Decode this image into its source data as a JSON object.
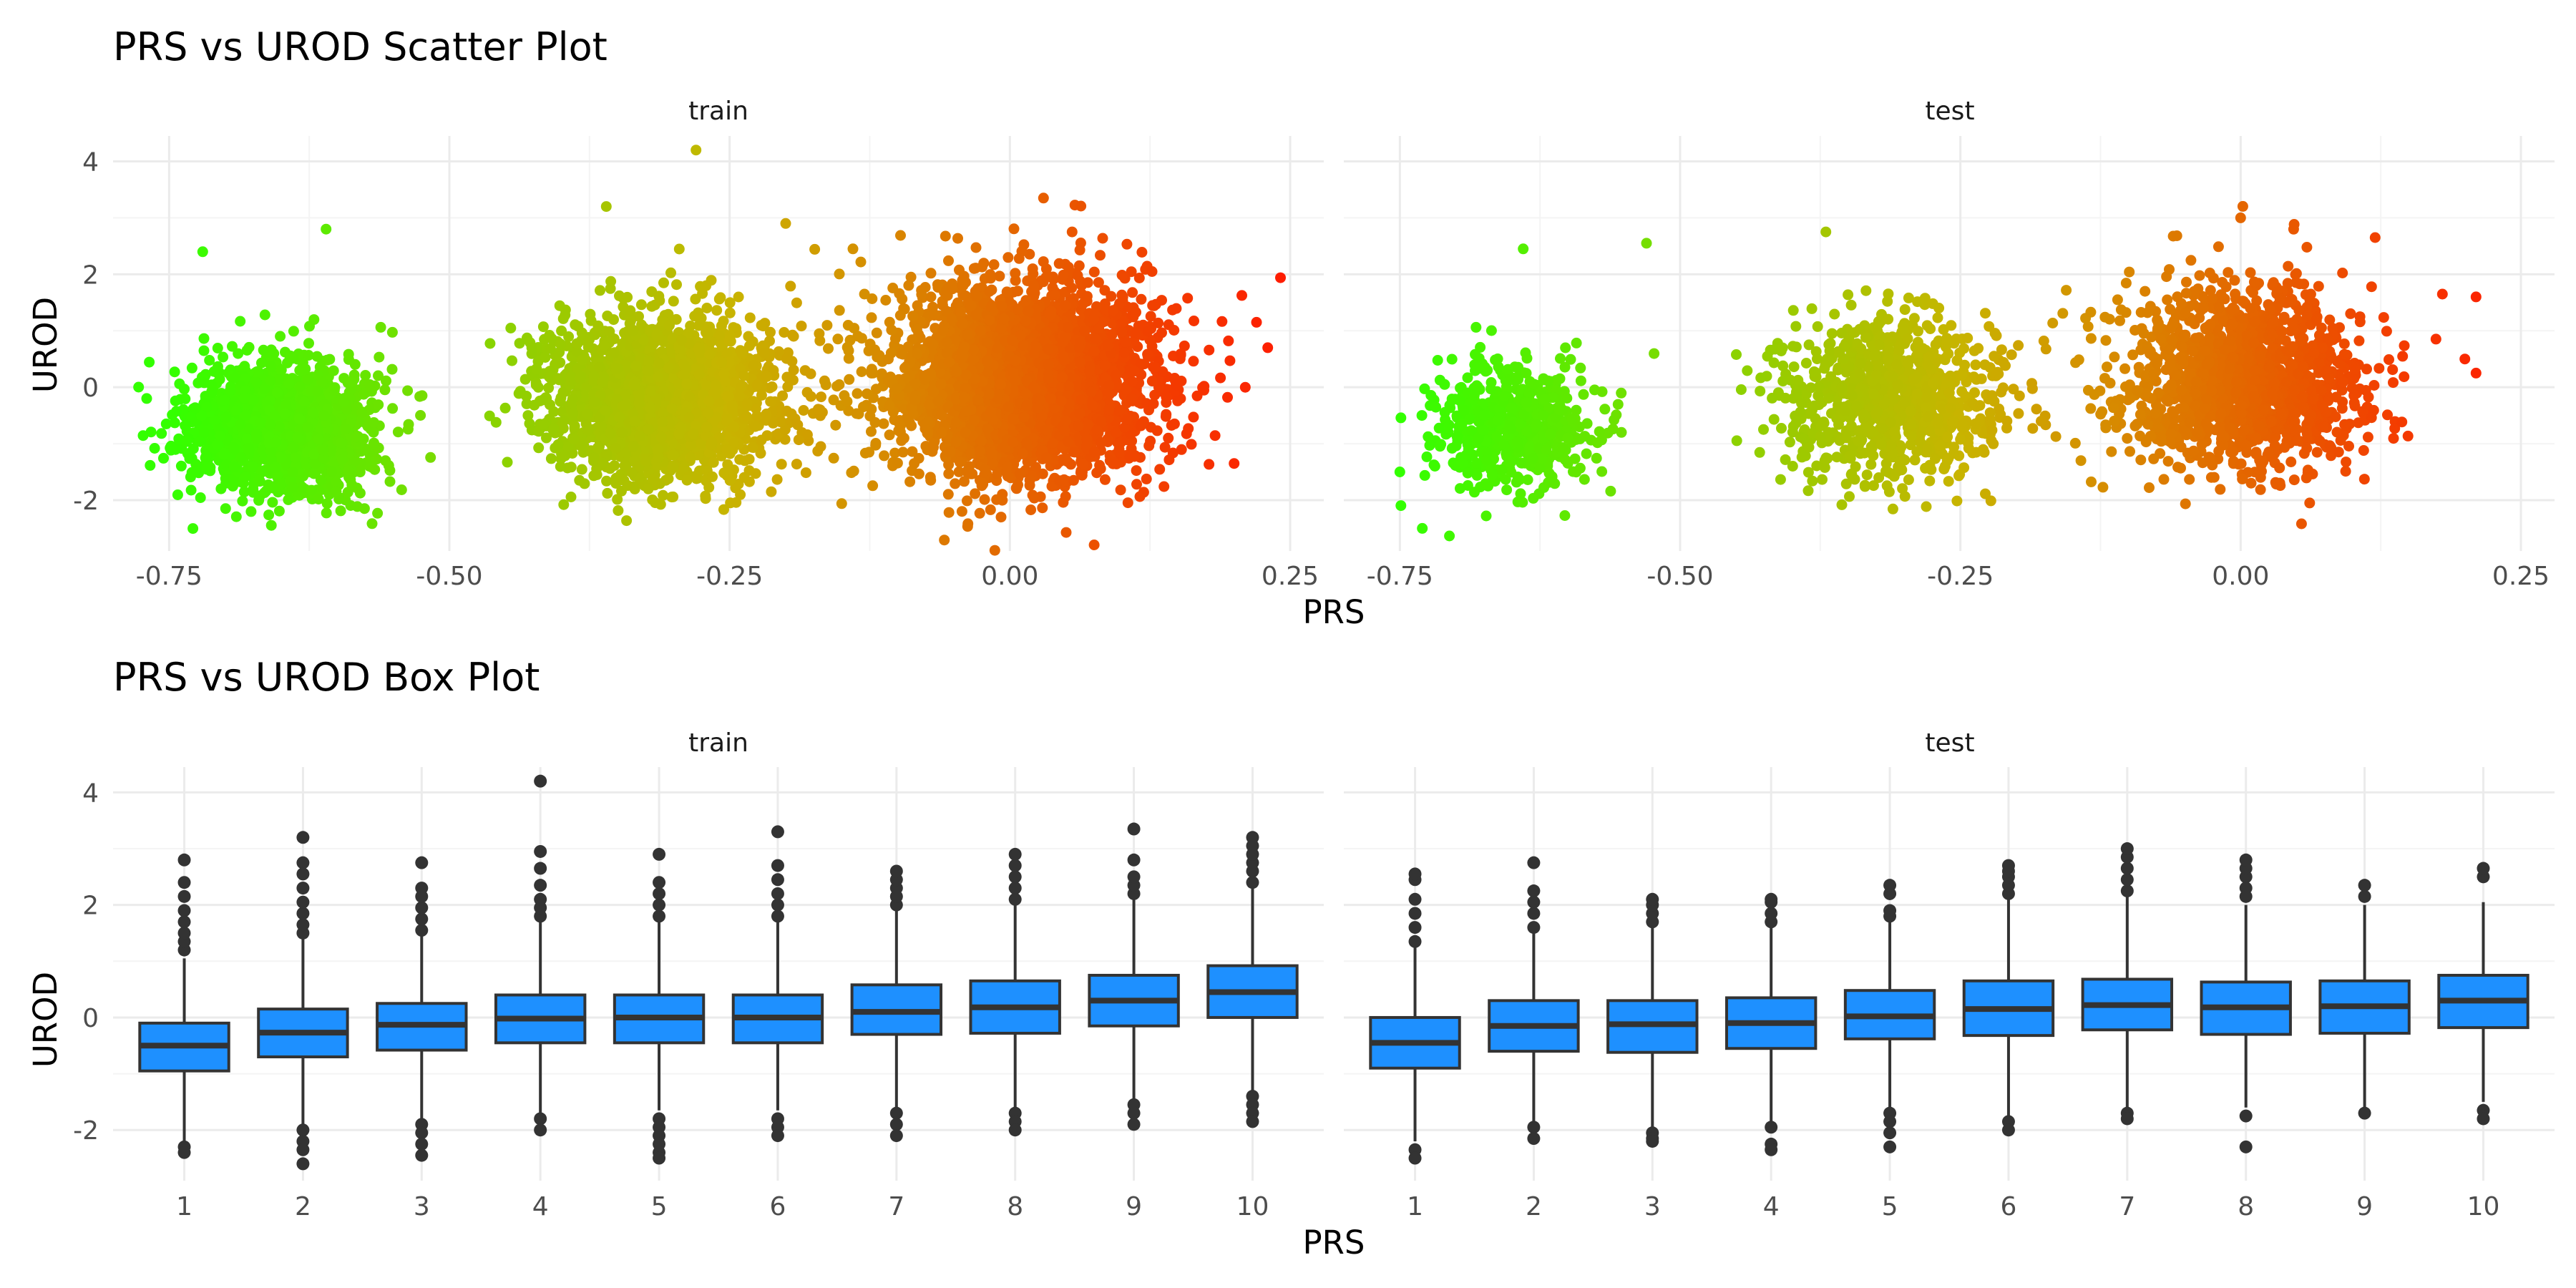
{
  "chart_data": [
    {
      "type": "scatter",
      "title": "PRS vs UROD Scatter Plot",
      "xlabel": "PRS",
      "ylabel": "UROD",
      "xlim": [
        -0.8,
        0.28
      ],
      "ylim": [
        -2.9,
        4.45
      ],
      "x_ticks": [
        -0.75,
        -0.5,
        -0.25,
        0.0,
        0.25
      ],
      "x_tick_labels": [
        "-0.75",
        "-0.50",
        "-0.25",
        "0.00",
        "0.25"
      ],
      "y_ticks": [
        -2,
        0,
        2,
        4
      ],
      "y_tick_labels": [
        "-2",
        "0",
        "2",
        "4"
      ],
      "grid": true,
      "color_scale": {
        "low": "#33ff00",
        "mid": "#c8b400",
        "high": "#ff1a00",
        "range": [
          -0.75,
          0.25
        ]
      },
      "panels": [
        {
          "name": "train",
          "clusters": [
            {
              "x_center": -0.65,
              "x_sd": 0.04,
              "y_center": -0.7,
              "y_sd": 0.6,
              "n": 1600
            },
            {
              "x_center": -0.31,
              "x_sd": 0.05,
              "y_center": -0.2,
              "y_sd": 0.7,
              "n": 2200
            },
            {
              "x_center": 0.01,
              "x_sd": 0.06,
              "y_center": 0.15,
              "y_sd": 0.85,
              "n": 3200
            }
          ],
          "outliers": [
            [
              -0.77,
              -0.2
            ],
            [
              -0.72,
              2.4
            ],
            [
              -0.61,
              2.8
            ],
            [
              -0.28,
              4.2
            ],
            [
              -0.36,
              3.2
            ],
            [
              0.03,
              3.35
            ],
            [
              0.22,
              1.15
            ],
            [
              0.23,
              0.7
            ],
            [
              0.21,
              0.0
            ],
            [
              0.2,
              -1.35
            ],
            [
              -0.2,
              2.9
            ],
            [
              -0.14,
              2.45
            ]
          ]
        },
        {
          "name": "test",
          "clusters": [
            {
              "x_center": -0.65,
              "x_sd": 0.035,
              "y_center": -0.7,
              "y_sd": 0.55,
              "n": 550
            },
            {
              "x_center": -0.31,
              "x_sd": 0.05,
              "y_center": -0.2,
              "y_sd": 0.7,
              "n": 900
            },
            {
              "x_center": 0.0,
              "x_sd": 0.055,
              "y_center": 0.15,
              "y_sd": 0.8,
              "n": 1400
            }
          ],
          "outliers": [
            [
              -0.75,
              -1.5
            ],
            [
              -0.73,
              -2.5
            ],
            [
              -0.64,
              2.45
            ],
            [
              -0.53,
              2.55
            ],
            [
              -0.37,
              2.75
            ],
            [
              0.0,
              3.0
            ],
            [
              0.18,
              1.65
            ],
            [
              0.21,
              1.6
            ],
            [
              0.2,
              0.5
            ],
            [
              0.21,
              0.25
            ],
            [
              0.12,
              2.65
            ]
          ]
        }
      ]
    },
    {
      "type": "box",
      "title": "PRS vs UROD Box Plot",
      "xlabel": "PRS",
      "ylabel": "UROD",
      "categories": [
        "1",
        "2",
        "3",
        "4",
        "5",
        "6",
        "7",
        "8",
        "9",
        "10"
      ],
      "ylim": [
        -2.9,
        4.45
      ],
      "y_ticks": [
        -2,
        0,
        2,
        4
      ],
      "y_tick_labels": [
        "-2",
        "0",
        "2",
        "4"
      ],
      "grid": true,
      "box_fill": "#1e90ff",
      "box_line": "#333333",
      "panels": [
        {
          "name": "train",
          "boxes": [
            {
              "q1": -0.95,
              "median": -0.5,
              "q3": -0.1,
              "lo": -2.2,
              "hi": 1.05,
              "out_lo": [
                -2.3,
                -2.4
              ],
              "out_hi": [
                1.2,
                1.35,
                1.5,
                1.7,
                1.9,
                2.15,
                2.4,
                2.8
              ]
            },
            {
              "q1": -0.7,
              "median": -0.27,
              "q3": 0.15,
              "lo": -1.95,
              "hi": 1.4,
              "out_lo": [
                -2.0,
                -2.2,
                -2.35,
                -2.6
              ],
              "out_hi": [
                1.5,
                1.65,
                1.85,
                2.05,
                2.3,
                2.55,
                2.75,
                3.2
              ]
            },
            {
              "q1": -0.58,
              "median": -0.13,
              "q3": 0.25,
              "lo": -1.8,
              "hi": 1.45,
              "out_lo": [
                -1.9,
                -2.05,
                -2.25,
                -2.45
              ],
              "out_hi": [
                1.55,
                1.75,
                1.95,
                2.15,
                2.3,
                2.75
              ]
            },
            {
              "q1": -0.45,
              "median": -0.02,
              "q3": 0.4,
              "lo": -1.7,
              "hi": 1.7,
              "out_lo": [
                -1.8,
                -2.0
              ],
              "out_hi": [
                1.8,
                1.95,
                2.1,
                2.35,
                2.65,
                2.95,
                4.2
              ]
            },
            {
              "q1": -0.45,
              "median": 0.0,
              "q3": 0.4,
              "lo": -1.65,
              "hi": 1.7,
              "out_lo": [
                -1.8,
                -1.95,
                -2.1,
                -2.25,
                -2.4,
                -2.5
              ],
              "out_hi": [
                1.8,
                2.0,
                2.2,
                2.4,
                2.9
              ]
            },
            {
              "q1": -0.45,
              "median": 0.0,
              "q3": 0.4,
              "lo": -1.65,
              "hi": 1.7,
              "out_lo": [
                -1.8,
                -1.95,
                -2.1
              ],
              "out_hi": [
                1.8,
                2.0,
                2.2,
                2.45,
                2.7,
                3.3
              ]
            },
            {
              "q1": -0.3,
              "median": 0.1,
              "q3": 0.58,
              "lo": -1.6,
              "hi": 1.9,
              "out_lo": [
                -1.7,
                -1.9,
                -2.1
              ],
              "out_hi": [
                2.0,
                2.15,
                2.3,
                2.45,
                2.6
              ]
            },
            {
              "q1": -0.28,
              "median": 0.18,
              "q3": 0.65,
              "lo": -1.6,
              "hi": 2.0,
              "out_lo": [
                -1.7,
                -1.85,
                -2.0
              ],
              "out_hi": [
                2.1,
                2.3,
                2.5,
                2.7,
                2.9
              ]
            },
            {
              "q1": -0.15,
              "median": 0.3,
              "q3": 0.75,
              "lo": -1.45,
              "hi": 2.1,
              "out_lo": [
                -1.55,
                -1.7,
                -1.9
              ],
              "out_hi": [
                2.2,
                2.35,
                2.5,
                2.8,
                3.35
              ]
            },
            {
              "q1": 0.0,
              "median": 0.45,
              "q3": 0.92,
              "lo": -1.3,
              "hi": 2.3,
              "out_lo": [
                -1.4,
                -1.55,
                -1.7,
                -1.85
              ],
              "out_hi": [
                2.4,
                2.6,
                2.75,
                2.9,
                3.05,
                3.2
              ]
            }
          ]
        },
        {
          "name": "test",
          "boxes": [
            {
              "q1": -0.9,
              "median": -0.45,
              "q3": 0.0,
              "lo": -2.2,
              "hi": 1.25,
              "out_lo": [
                -2.35,
                -2.5
              ],
              "out_hi": [
                1.35,
                1.6,
                1.85,
                2.1,
                2.45,
                2.55
              ]
            },
            {
              "q1": -0.6,
              "median": -0.15,
              "q3": 0.3,
              "lo": -1.85,
              "hi": 1.5,
              "out_lo": [
                -1.95,
                -2.15
              ],
              "out_hi": [
                1.6,
                1.85,
                2.05,
                2.25,
                2.75
              ]
            },
            {
              "q1": -0.62,
              "median": -0.12,
              "q3": 0.3,
              "lo": -1.95,
              "hi": 1.6,
              "out_lo": [
                -2.05,
                -2.15,
                -2.2
              ],
              "out_hi": [
                1.7,
                1.85,
                2.0,
                2.1
              ]
            },
            {
              "q1": -0.55,
              "median": -0.1,
              "q3": 0.35,
              "lo": -1.85,
              "hi": 1.6,
              "out_lo": [
                -1.95,
                -2.25,
                -2.35
              ],
              "out_hi": [
                1.7,
                1.85,
                2.05,
                2.1
              ]
            },
            {
              "q1": -0.38,
              "median": 0.02,
              "q3": 0.48,
              "lo": -1.6,
              "hi": 1.7,
              "out_lo": [
                -1.7,
                -1.85,
                -2.05,
                -2.3
              ],
              "out_hi": [
                1.8,
                1.9,
                2.2,
                2.35
              ]
            },
            {
              "q1": -0.32,
              "median": 0.15,
              "q3": 0.65,
              "lo": -1.75,
              "hi": 2.1,
              "out_lo": [
                -1.85,
                -2.0
              ],
              "out_hi": [
                2.2,
                2.35,
                2.5,
                2.6,
                2.7
              ]
            },
            {
              "q1": -0.22,
              "median": 0.22,
              "q3": 0.68,
              "lo": -1.6,
              "hi": 2.15,
              "out_lo": [
                -1.7,
                -1.8
              ],
              "out_hi": [
                2.25,
                2.45,
                2.65,
                2.85,
                3.0
              ]
            },
            {
              "q1": -0.3,
              "median": 0.18,
              "q3": 0.63,
              "lo": -1.6,
              "hi": 2.0,
              "out_lo": [
                -1.75,
                -2.3
              ],
              "out_hi": [
                2.15,
                2.3,
                2.5,
                2.65,
                2.8
              ]
            },
            {
              "q1": -0.28,
              "median": 0.2,
              "q3": 0.65,
              "lo": -1.6,
              "hi": 2.0,
              "out_lo": [
                -1.7
              ],
              "out_hi": [
                2.15,
                2.35
              ]
            },
            {
              "q1": -0.18,
              "median": 0.3,
              "q3": 0.75,
              "lo": -1.5,
              "hi": 2.05,
              "out_lo": [
                -1.65,
                -1.8
              ],
              "out_hi": [
                2.5,
                2.65
              ]
            }
          ]
        }
      ]
    }
  ]
}
